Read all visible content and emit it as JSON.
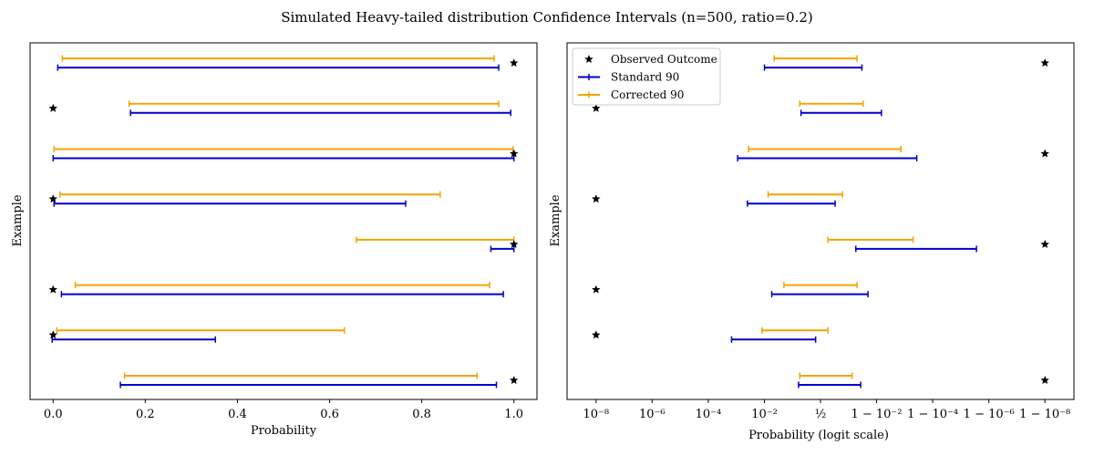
{
  "figure_title": "Simulated Heavy-tailed distribution Confidence Intervals (n=500, ratio=0.2)",
  "colors": {
    "standard": "#0000cc",
    "corrected": "#f5a300",
    "observed": "#000000"
  },
  "chart_data": [
    {
      "type": "errorbar",
      "xlabel": "Probability",
      "ylabel": "Example",
      "xscale": "linear",
      "xlim": [
        -0.05,
        1.05
      ],
      "xticks": [
        0.0,
        0.2,
        0.4,
        0.6,
        0.8,
        1.0
      ],
      "xtick_labels": [
        "0.0",
        "0.2",
        "0.4",
        "0.6",
        "0.8",
        "1.0"
      ],
      "legend": null,
      "examples": [
        {
          "observed": 1,
          "standard": [
            0.146,
            0.962
          ],
          "corrected": [
            0.155,
            0.92
          ]
        },
        {
          "observed": 0,
          "standard": [
            -0.002,
            0.352
          ],
          "corrected": [
            0.008,
            0.632
          ]
        },
        {
          "observed": 0,
          "standard": [
            0.018,
            0.977
          ],
          "corrected": [
            0.048,
            0.947
          ]
        },
        {
          "observed": 1,
          "standard": [
            0.95,
            1.0
          ],
          "corrected": [
            0.658,
            1.0
          ]
        },
        {
          "observed": 0,
          "standard": [
            0.002,
            0.765
          ],
          "corrected": [
            0.015,
            0.84
          ]
        },
        {
          "observed": 1,
          "standard": [
            0.0,
            1.0
          ],
          "corrected": [
            0.002,
            0.998
          ]
        },
        {
          "observed": 0,
          "standard": [
            0.168,
            0.993
          ],
          "corrected": [
            0.165,
            0.967
          ]
        },
        {
          "observed": 1,
          "standard": [
            0.01,
            0.967
          ],
          "corrected": [
            0.02,
            0.957
          ]
        }
      ]
    },
    {
      "type": "errorbar",
      "xlabel": "Probability (logit scale)",
      "ylabel": "Example",
      "xscale": "logit",
      "xlim_logit": [
        -20.8,
        20.8
      ],
      "xticks_logit": [
        -18.42,
        -13.82,
        -9.21,
        -4.6,
        0.0,
        4.6,
        9.21,
        13.82,
        18.42
      ],
      "xtick_labels": [
        "10⁻⁸",
        "10⁻⁶",
        "10⁻⁴",
        "10⁻²",
        "½",
        "1 − 10⁻²",
        "1 − 10⁻⁴",
        "1 − 10⁻⁶",
        "1 − 10⁻⁸"
      ],
      "legend": {
        "placement": "upper-left",
        "entries": [
          {
            "label": "Observed Outcome",
            "kind": "observed"
          },
          {
            "label": "Standard 90",
            "kind": "standard"
          },
          {
            "label": "Corrected 90",
            "kind": "corrected"
          }
        ]
      },
      "examples": [
        {
          "observed": 1,
          "standard_logit": [
            -1.8,
            3.3
          ],
          "corrected_logit": [
            -1.7,
            2.6
          ]
        },
        {
          "observed": 0,
          "standard_logit": [
            -7.3,
            -0.4
          ],
          "corrected_logit": [
            -4.8,
            0.6
          ]
        },
        {
          "observed": 0,
          "standard_logit": [
            -4.0,
            3.9
          ],
          "corrected_logit": [
            -3.0,
            3.0
          ]
        },
        {
          "observed": 1,
          "standard_logit": [
            2.9,
            12.8
          ],
          "corrected_logit": [
            0.6,
            7.6
          ]
        },
        {
          "observed": 0,
          "standard_logit": [
            -6.0,
            1.2
          ],
          "corrected_logit": [
            -4.3,
            1.8
          ]
        },
        {
          "observed": 1,
          "standard_logit": [
            -6.8,
            7.9
          ],
          "corrected_logit": [
            -5.9,
            6.6
          ]
        },
        {
          "observed": 0,
          "standard_logit": [
            -1.6,
            5.0
          ],
          "corrected_logit": [
            -1.7,
            3.5
          ]
        },
        {
          "observed": 1,
          "standard_logit": [
            -4.6,
            3.4
          ],
          "corrected_logit": [
            -3.8,
            3.0
          ]
        }
      ]
    }
  ]
}
